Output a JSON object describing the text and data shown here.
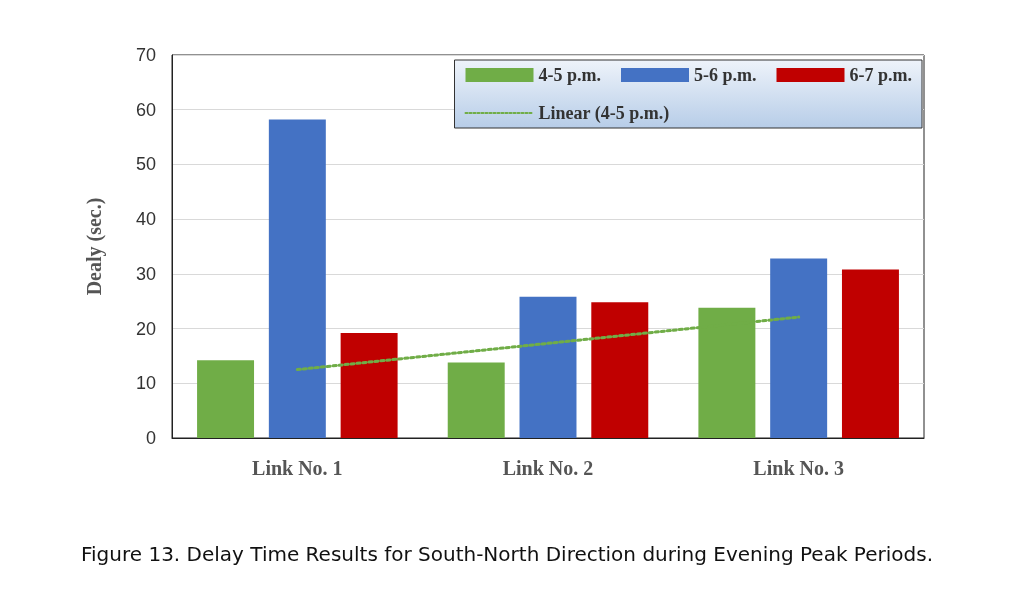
{
  "chart_data": {
    "type": "bar",
    "ylabel": "Dealy (sec.)",
    "categories": [
      "Link No. 1",
      "Link No. 2",
      "Link No. 3"
    ],
    "series": [
      {
        "name": "4-5 p.m.",
        "color": "#70ad47",
        "values": [
          14.2,
          13.8,
          23.8
        ]
      },
      {
        "name": "5-6 p.m.",
        "color": "#4472c4",
        "values": [
          58.2,
          25.8,
          32.8
        ]
      },
      {
        "name": "6-7 p.m.",
        "color": "#c00000",
        "values": [
          19.2,
          24.8,
          30.8
        ]
      },
      {
        "name": "Linear (4-5 p.m.)",
        "type": "line",
        "color": "#70ad47",
        "line_style": "dotted",
        "marker": "none",
        "x": [
          "Link No. 1",
          "Link No. 2",
          "Link No. 3"
        ],
        "values": [
          12.5,
          17.3,
          22.1
        ]
      }
    ],
    "ylim": [
      0,
      70
    ],
    "yticks": [
      0,
      10,
      20,
      30,
      40,
      50,
      60,
      70
    ],
    "grid": "y",
    "legend": "top right",
    "annotations": [
      "Figure 13. Delay Time Results for South-North Direction during Evening Peak Periods."
    ]
  }
}
